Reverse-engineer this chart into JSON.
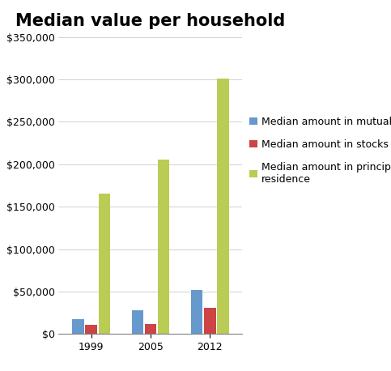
{
  "title": "Median value per household",
  "years": [
    "1999",
    "2005",
    "2012"
  ],
  "mutual_funds": [
    17000,
    28000,
    52000
  ],
  "stocks": [
    11000,
    12000,
    31000
  ],
  "principal_residence": [
    165000,
    206000,
    301000
  ],
  "bar_colors": {
    "mutual_funds": "#6699CC",
    "stocks": "#CC4444",
    "principal_residence": "#BBCC55"
  },
  "legend_labels": {
    "mutual_funds": "Median amount in mutual funds",
    "stocks": "Median amount in stocks",
    "principal_residence": "Median amount in principal\nresidence"
  },
  "ylim": [
    0,
    350000
  ],
  "yticks": [
    0,
    50000,
    100000,
    150000,
    200000,
    250000,
    300000,
    350000
  ],
  "background_color": "#FFFFFF",
  "title_fontsize": 15,
  "tick_fontsize": 9,
  "legend_fontsize": 9
}
